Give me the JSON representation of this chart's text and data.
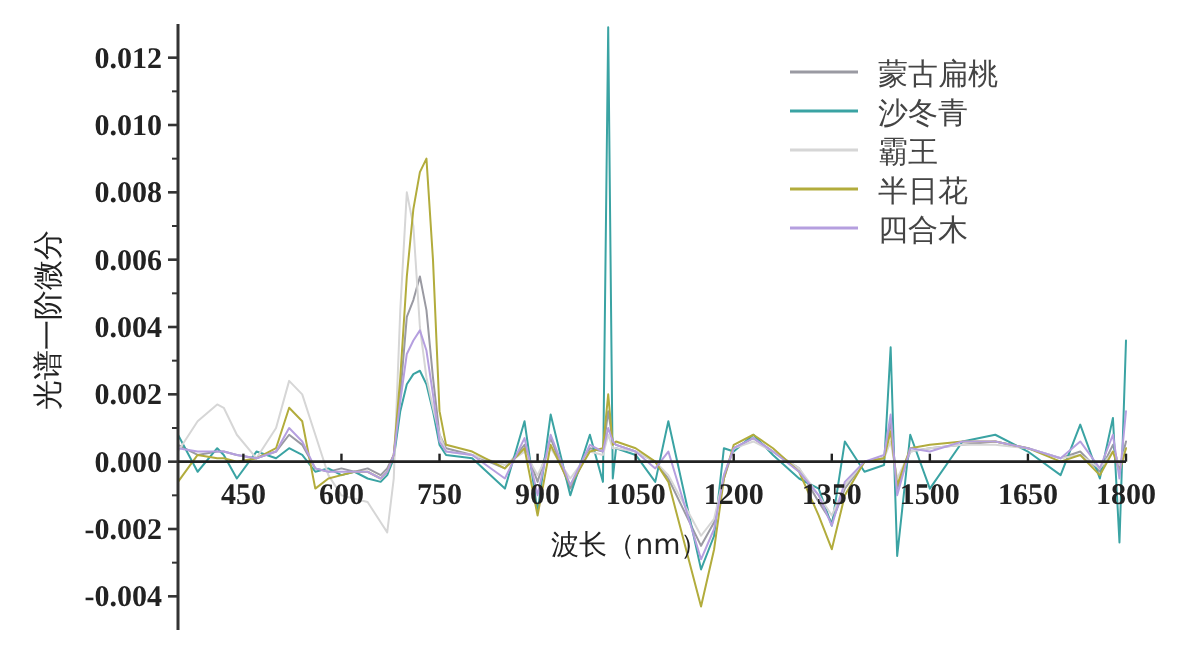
{
  "chart_data": {
    "type": "line",
    "xlabel": "波长（nm）",
    "ylabel": "光谱一阶微分",
    "xlim": [
      350,
      1800
    ],
    "ylim": [
      -0.005,
      0.013
    ],
    "xticks": [
      450,
      600,
      750,
      900,
      1050,
      1200,
      1350,
      1500,
      1650,
      1800
    ],
    "yticks": [
      -0.004,
      -0.002,
      {
        "value": 0,
        "label": "0.000"
      },
      0.002,
      0.004,
      0.006,
      0.008,
      {
        "value": 0.01,
        "label": "0.010"
      },
      0.012
    ],
    "legend": "top right",
    "grid": false,
    "marker": "none",
    "line_style": "solid",
    "x": [
      350,
      380,
      410,
      420,
      440,
      470,
      500,
      520,
      540,
      560,
      580,
      600,
      620,
      640,
      660,
      670,
      680,
      690,
      700,
      710,
      720,
      730,
      740,
      750,
      760,
      800,
      850,
      880,
      900,
      920,
      950,
      980,
      1000,
      1008,
      1015,
      1020,
      1050,
      1080,
      1100,
      1150,
      1170,
      1185,
      1200,
      1230,
      1260,
      1300,
      1330,
      1350,
      1370,
      1400,
      1430,
      1440,
      1450,
      1470,
      1500,
      1550,
      1600,
      1650,
      1700,
      1730,
      1760,
      1780,
      1790,
      1800
    ],
    "series": [
      {
        "name": "蒙古扁桃",
        "color": "#9a9aa2",
        "values": [
          0.0005,
          0.0002,
          0.0003,
          0.0003,
          0.0002,
          0.0001,
          0.0003,
          0.0008,
          0.0005,
          -0.0002,
          -0.0003,
          -0.0002,
          -0.0003,
          -0.0002,
          -0.0004,
          -0.0002,
          0.0002,
          0.002,
          0.0043,
          0.0048,
          0.0055,
          0.0045,
          0.0025,
          0.0008,
          0.0004,
          0.0002,
          -0.0002,
          0.0005,
          -0.0006,
          0.0007,
          -0.0008,
          0.0004,
          0.0003,
          0.0015,
          0.0006,
          0.0005,
          0.0003,
          0,
          -0.0005,
          -0.0025,
          -0.0018,
          -0.0005,
          0.0004,
          0.0007,
          0.0003,
          -0.0002,
          -0.0012,
          -0.0018,
          -0.0008,
          0,
          0.0001,
          0.0012,
          -0.0008,
          0.0003,
          0.0004,
          0.0005,
          0.0006,
          0.0004,
          0.0001,
          0.0003,
          -0.0003,
          0.0005,
          -0.0002,
          0.0006
        ]
      },
      {
        "name": "沙冬青",
        "color": "#3aa3a3",
        "values": [
          0.0008,
          -0.0003,
          0.0004,
          0.0002,
          -0.0005,
          0.0003,
          0.0001,
          0.0004,
          0.0002,
          -0.0003,
          -0.0002,
          -0.0004,
          -0.0003,
          -0.0005,
          -0.0006,
          -0.0004,
          0.0001,
          0.0015,
          0.0023,
          0.0026,
          0.0027,
          0.0023,
          0.0015,
          0.0005,
          0.0002,
          0.0001,
          -0.0008,
          0.0012,
          -0.0015,
          0.0014,
          -0.001,
          0.0008,
          -0.0006,
          0.0129,
          -0.0005,
          0.0004,
          0.0002,
          -0.0006,
          0.0012,
          -0.0032,
          -0.0022,
          0.0004,
          0.0003,
          0.0008,
          0.0002,
          -0.0005,
          -0.0008,
          -0.0019,
          0.0006,
          -0.0003,
          -0.0001,
          0.0034,
          -0.0028,
          0.0008,
          -0.0008,
          0.0006,
          0.0008,
          0.0003,
          -0.0004,
          0.0011,
          -0.0005,
          0.0013,
          -0.0024,
          0.0036
        ]
      },
      {
        "name": "霸王",
        "color": "#d6d6d6",
        "values": [
          0.0003,
          0.0012,
          0.0017,
          0.0016,
          0.0008,
          0.0001,
          0.001,
          0.0024,
          0.002,
          0.0008,
          -0.0004,
          -0.001,
          -0.0011,
          -0.0012,
          -0.0018,
          -0.0021,
          -0.0005,
          0.0045,
          0.008,
          0.007,
          0.004,
          0.0025,
          0.0016,
          0.0008,
          0.0003,
          0.0002,
          -0.0001,
          0.0003,
          -0.0004,
          0.0004,
          -0.0005,
          0.0003,
          0.0002,
          0.0008,
          0.0004,
          0.0004,
          0.0003,
          0,
          -0.0004,
          -0.0022,
          -0.0017,
          -0.0004,
          0.0004,
          0.0006,
          0.0003,
          -0.0002,
          -0.001,
          -0.0016,
          -0.0007,
          0,
          0.0001,
          0.0006,
          -0.0005,
          0.0003,
          0.0004,
          0.0005,
          0.0005,
          0.0004,
          0.0001,
          0.0002,
          -0.0002,
          0.0003,
          -0.0001,
          0.0004
        ]
      },
      {
        "name": "半日花",
        "color": "#b2ac3c",
        "values": [
          -0.0006,
          0.0002,
          0.0001,
          0.0001,
          0,
          0.0001,
          0.0004,
          0.0016,
          0.0012,
          -0.0008,
          -0.0005,
          -0.0004,
          -0.0003,
          -0.0003,
          -0.0005,
          -0.0003,
          0.0002,
          0.0025,
          0.0055,
          0.0075,
          0.0086,
          0.009,
          0.006,
          0.0015,
          0.0005,
          0.0003,
          -0.0002,
          0.0004,
          -0.0016,
          0.0005,
          -0.0007,
          0.0003,
          0.0004,
          0.002,
          0.0005,
          0.0006,
          0.0004,
          0,
          -0.0006,
          -0.0043,
          -0.0026,
          -0.0005,
          0.0005,
          0.0008,
          0.0004,
          -0.0003,
          -0.0016,
          -0.0026,
          -0.001,
          0,
          0.0001,
          0.0009,
          -0.0007,
          0.0004,
          0.0005,
          0.0006,
          0.0006,
          0.0004,
          0,
          0.0002,
          -0.0004,
          0.0003,
          -0.0003,
          0.0004
        ]
      },
      {
        "name": "四合木",
        "color": "#b59fdf",
        "values": [
          0.0004,
          0.0003,
          0.0003,
          0.0003,
          0.0002,
          0.0001,
          0.0003,
          0.001,
          0.0006,
          -0.0002,
          -0.0003,
          -0.0003,
          -0.0003,
          -0.0003,
          -0.0005,
          -0.0003,
          0.0002,
          0.0018,
          0.0032,
          0.0036,
          0.0039,
          0.0033,
          0.002,
          0.0006,
          0.0003,
          0.0002,
          -0.0005,
          0.0007,
          -0.001,
          0.0008,
          -0.0007,
          0.0005,
          0.0003,
          0.001,
          0.0006,
          0.0005,
          0.0003,
          -0.0002,
          0.0003,
          -0.0029,
          -0.002,
          -0.0004,
          0.0004,
          0.0007,
          0.0003,
          -0.0003,
          -0.001,
          -0.0019,
          -0.0006,
          0,
          0.0002,
          0.0014,
          -0.001,
          0.0004,
          0.0003,
          0.0006,
          0.0006,
          0.0004,
          0.0001,
          0.0006,
          -0.0002,
          0.0008,
          -0.0005,
          0.0015
        ]
      }
    ]
  }
}
